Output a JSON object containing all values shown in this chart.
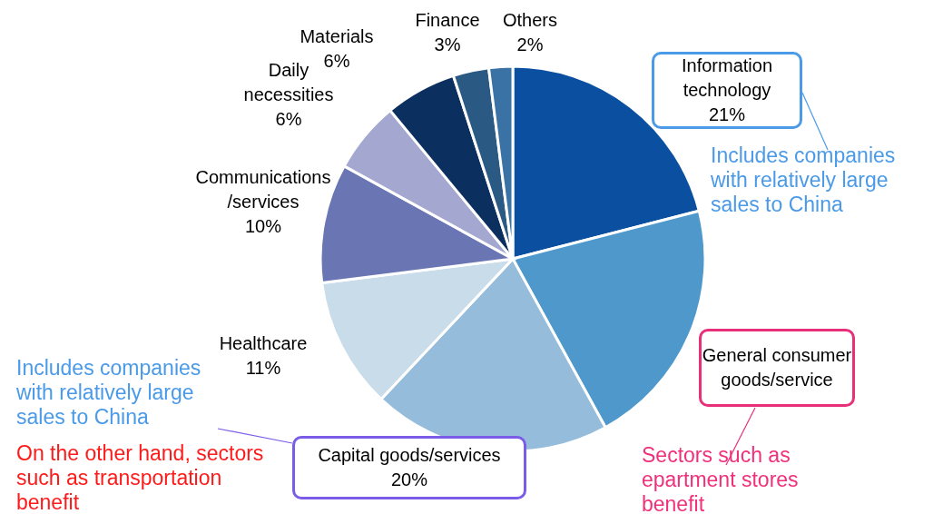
{
  "chart_data": {
    "type": "pie",
    "categories": [
      "Information technology",
      "General consumer goods/service",
      "Capital goods/services",
      "Healthcare",
      "Communications /services",
      "Daily necessities",
      "Materials",
      "Finance",
      "Others"
    ],
    "values": [
      21,
      21,
      20,
      11,
      10,
      6,
      6,
      3,
      2
    ],
    "value_labels": [
      "21%",
      null,
      "20%",
      "11%",
      "10%",
      "6%",
      "6%",
      "3%",
      "2%"
    ],
    "colors": [
      "#0b50a0",
      "#4f98cb",
      "#95bcda",
      "#c9dcea",
      "#6a76b4",
      "#a4a8d0",
      "#0b2f5e",
      "#2a5a83",
      "#3a72a6"
    ],
    "annotations": [
      "Includes companies with relatively large sales to China",
      "Includes companies with relatively large sales to China",
      "On the other hand, sectors such as transportation benefit",
      "Sectors such as epartment stores benefit"
    ]
  }
}
